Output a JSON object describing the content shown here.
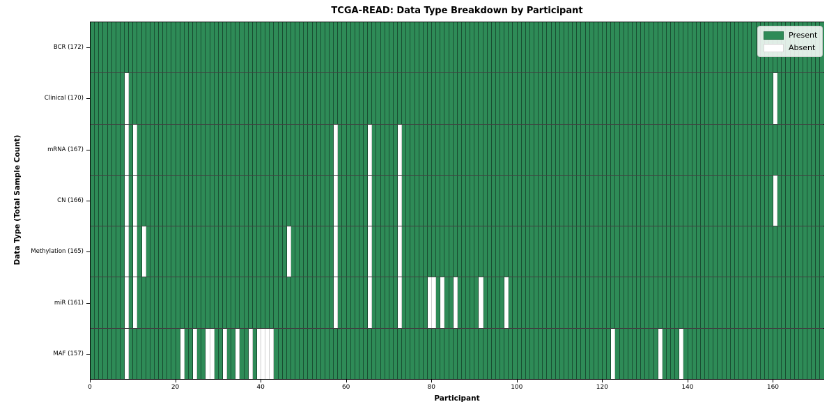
{
  "colors": {
    "present": "#2e8b57",
    "absent": "#ffffff",
    "cell_edge": "rgba(10,30,20,0.55)",
    "axis": "#000000",
    "legend_border": "#cccccc"
  },
  "chart_data": {
    "type": "heatmap",
    "title": "TCGA-READ: Data Type Breakdown by Participant",
    "xlabel": "Participant",
    "ylabel": "Data Type (Total Sample Count)",
    "n_participants": 172,
    "x_range": [
      0,
      172
    ],
    "x_ticks": [
      0,
      20,
      40,
      60,
      80,
      100,
      120,
      140,
      160
    ],
    "grid": false,
    "legend_position": "upper right",
    "legend": [
      {
        "label": "Present",
        "color": "#2e8b57"
      },
      {
        "label": "Absent",
        "color": "#ffffff"
      }
    ],
    "rows": [
      {
        "label": "BCR (172)",
        "data_type": "BCR",
        "total_samples": 172,
        "absent_participants": []
      },
      {
        "label": "Clinical (170)",
        "data_type": "Clinical",
        "total_samples": 170,
        "absent_participants": [
          8,
          160
        ]
      },
      {
        "label": "mRNA (167)",
        "data_type": "mRNA",
        "total_samples": 167,
        "absent_participants": [
          8,
          10,
          57,
          65,
          72
        ]
      },
      {
        "label": "CN (166)",
        "data_type": "CN",
        "total_samples": 166,
        "absent_participants": [
          8,
          10,
          57,
          65,
          72,
          160
        ]
      },
      {
        "label": "Methylation (165)",
        "data_type": "Methylation",
        "total_samples": 165,
        "absent_participants": [
          8,
          10,
          12,
          46,
          57,
          65,
          72
        ]
      },
      {
        "label": "miR (161)",
        "data_type": "miR",
        "total_samples": 161,
        "absent_participants": [
          8,
          10,
          57,
          65,
          72,
          79,
          80,
          82,
          85,
          91,
          97
        ]
      },
      {
        "label": "MAF (157)",
        "data_type": "MAF",
        "total_samples": 157,
        "absent_participants": [
          8,
          21,
          24,
          27,
          28,
          31,
          34,
          37,
          39,
          40,
          41,
          42,
          122,
          133,
          138
        ]
      }
    ]
  }
}
